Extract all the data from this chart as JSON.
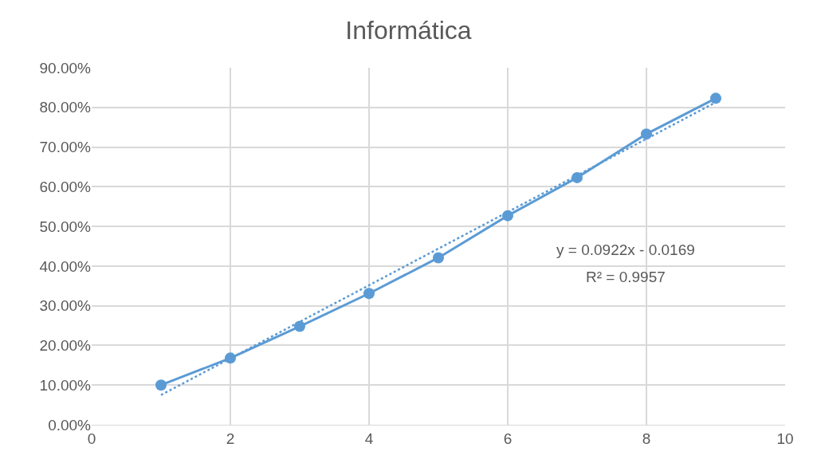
{
  "chart_data": {
    "type": "line",
    "title": "Informática",
    "xlim": [
      0,
      10
    ],
    "xticks": [
      0,
      2,
      4,
      6,
      8,
      10
    ],
    "ylim": [
      0,
      0.9
    ],
    "yticks": [
      {
        "value": 0,
        "label": "0.00%"
      },
      {
        "value": 0.1,
        "label": "10.00%"
      },
      {
        "value": 0.2,
        "label": "20.00%"
      },
      {
        "value": 0.3,
        "label": "30.00%"
      },
      {
        "value": 0.4,
        "label": "40.00%"
      },
      {
        "value": 0.5,
        "label": "50.00%"
      },
      {
        "value": 0.6,
        "label": "60.00%"
      },
      {
        "value": 0.7,
        "label": "70.00%"
      },
      {
        "value": 0.8,
        "label": "80.00%"
      },
      {
        "value": 0.9,
        "label": "90.00%"
      }
    ],
    "grid": true,
    "series": [
      {
        "color": "#5b9bd5",
        "marker": "circle",
        "line_style": "solid",
        "x": [
          1,
          2,
          3,
          4,
          5,
          6,
          7,
          8,
          9
        ],
        "values": [
          0.1,
          0.168,
          0.248,
          0.331,
          0.421,
          0.527,
          0.623,
          0.733,
          0.823
        ]
      },
      {
        "color": "#5b9bd5",
        "marker": "none",
        "line_style": "dotted",
        "x": [
          1,
          9
        ],
        "values": [
          0.075,
          0.813
        ]
      }
    ],
    "annotations": [
      "y = 0.0922x - 0.0169",
      "R² = 0.9957"
    ]
  }
}
